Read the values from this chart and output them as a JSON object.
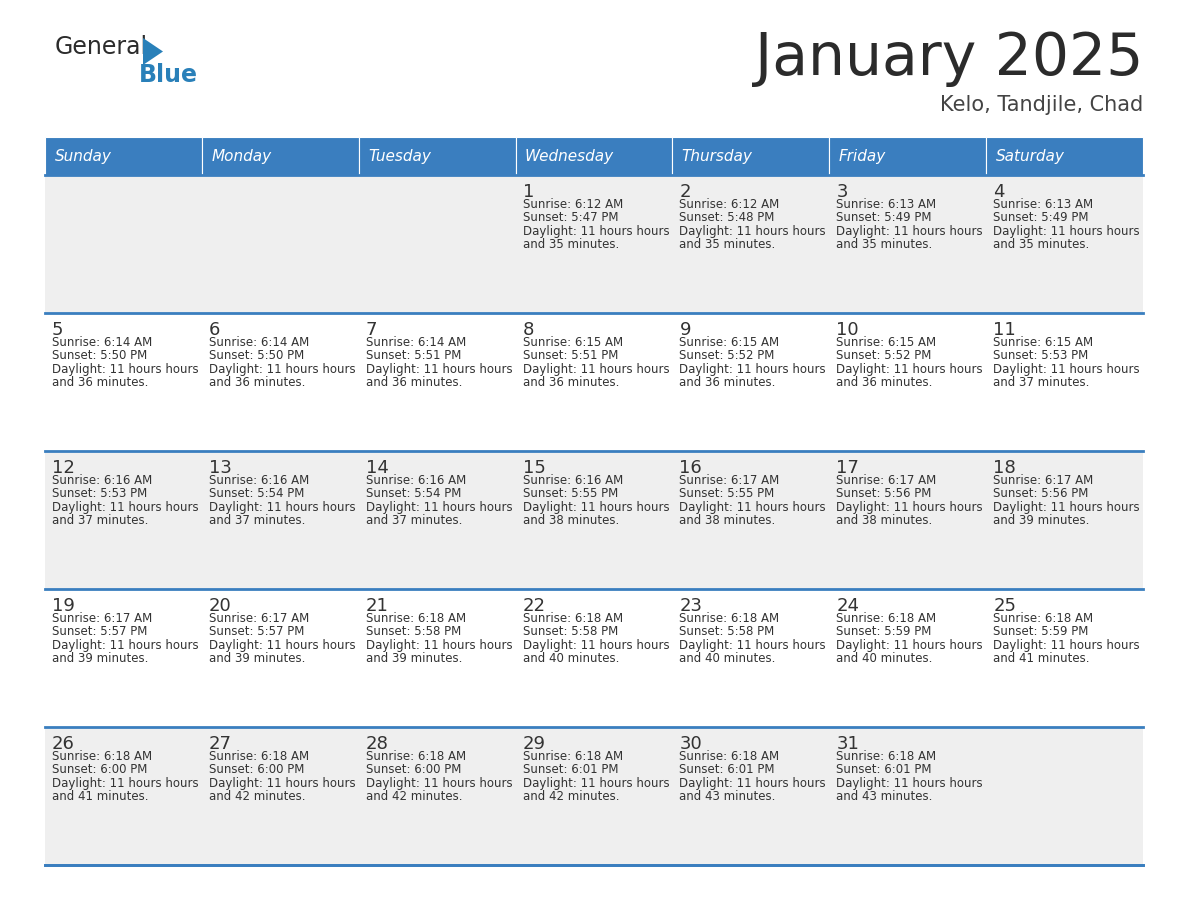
{
  "title": "January 2025",
  "subtitle": "Kelo, Tandjile, Chad",
  "days_of_week": [
    "Sunday",
    "Monday",
    "Tuesday",
    "Wednesday",
    "Thursday",
    "Friday",
    "Saturday"
  ],
  "header_bg": "#3a7ebf",
  "header_text": "#ffffff",
  "cell_bg_gray": "#efefef",
  "cell_bg_white": "#ffffff",
  "separator_color": "#3a7ebf",
  "text_color": "#333333",
  "calendar_data": [
    {
      "day": 1,
      "col": 3,
      "row": 0,
      "sunrise": "6:12 AM",
      "sunset": "5:47 PM",
      "daylight": "11 hours and 35 minutes."
    },
    {
      "day": 2,
      "col": 4,
      "row": 0,
      "sunrise": "6:12 AM",
      "sunset": "5:48 PM",
      "daylight": "11 hours and 35 minutes."
    },
    {
      "day": 3,
      "col": 5,
      "row": 0,
      "sunrise": "6:13 AM",
      "sunset": "5:49 PM",
      "daylight": "11 hours and 35 minutes."
    },
    {
      "day": 4,
      "col": 6,
      "row": 0,
      "sunrise": "6:13 AM",
      "sunset": "5:49 PM",
      "daylight": "11 hours and 35 minutes."
    },
    {
      "day": 5,
      "col": 0,
      "row": 1,
      "sunrise": "6:14 AM",
      "sunset": "5:50 PM",
      "daylight": "11 hours and 36 minutes."
    },
    {
      "day": 6,
      "col": 1,
      "row": 1,
      "sunrise": "6:14 AM",
      "sunset": "5:50 PM",
      "daylight": "11 hours and 36 minutes."
    },
    {
      "day": 7,
      "col": 2,
      "row": 1,
      "sunrise": "6:14 AM",
      "sunset": "5:51 PM",
      "daylight": "11 hours and 36 minutes."
    },
    {
      "day": 8,
      "col": 3,
      "row": 1,
      "sunrise": "6:15 AM",
      "sunset": "5:51 PM",
      "daylight": "11 hours and 36 minutes."
    },
    {
      "day": 9,
      "col": 4,
      "row": 1,
      "sunrise": "6:15 AM",
      "sunset": "5:52 PM",
      "daylight": "11 hours and 36 minutes."
    },
    {
      "day": 10,
      "col": 5,
      "row": 1,
      "sunrise": "6:15 AM",
      "sunset": "5:52 PM",
      "daylight": "11 hours and 36 minutes."
    },
    {
      "day": 11,
      "col": 6,
      "row": 1,
      "sunrise": "6:15 AM",
      "sunset": "5:53 PM",
      "daylight": "11 hours and 37 minutes."
    },
    {
      "day": 12,
      "col": 0,
      "row": 2,
      "sunrise": "6:16 AM",
      "sunset": "5:53 PM",
      "daylight": "11 hours and 37 minutes."
    },
    {
      "day": 13,
      "col": 1,
      "row": 2,
      "sunrise": "6:16 AM",
      "sunset": "5:54 PM",
      "daylight": "11 hours and 37 minutes."
    },
    {
      "day": 14,
      "col": 2,
      "row": 2,
      "sunrise": "6:16 AM",
      "sunset": "5:54 PM",
      "daylight": "11 hours and 37 minutes."
    },
    {
      "day": 15,
      "col": 3,
      "row": 2,
      "sunrise": "6:16 AM",
      "sunset": "5:55 PM",
      "daylight": "11 hours and 38 minutes."
    },
    {
      "day": 16,
      "col": 4,
      "row": 2,
      "sunrise": "6:17 AM",
      "sunset": "5:55 PM",
      "daylight": "11 hours and 38 minutes."
    },
    {
      "day": 17,
      "col": 5,
      "row": 2,
      "sunrise": "6:17 AM",
      "sunset": "5:56 PM",
      "daylight": "11 hours and 38 minutes."
    },
    {
      "day": 18,
      "col": 6,
      "row": 2,
      "sunrise": "6:17 AM",
      "sunset": "5:56 PM",
      "daylight": "11 hours and 39 minutes."
    },
    {
      "day": 19,
      "col": 0,
      "row": 3,
      "sunrise": "6:17 AM",
      "sunset": "5:57 PM",
      "daylight": "11 hours and 39 minutes."
    },
    {
      "day": 20,
      "col": 1,
      "row": 3,
      "sunrise": "6:17 AM",
      "sunset": "5:57 PM",
      "daylight": "11 hours and 39 minutes."
    },
    {
      "day": 21,
      "col": 2,
      "row": 3,
      "sunrise": "6:18 AM",
      "sunset": "5:58 PM",
      "daylight": "11 hours and 39 minutes."
    },
    {
      "day": 22,
      "col": 3,
      "row": 3,
      "sunrise": "6:18 AM",
      "sunset": "5:58 PM",
      "daylight": "11 hours and 40 minutes."
    },
    {
      "day": 23,
      "col": 4,
      "row": 3,
      "sunrise": "6:18 AM",
      "sunset": "5:58 PM",
      "daylight": "11 hours and 40 minutes."
    },
    {
      "day": 24,
      "col": 5,
      "row": 3,
      "sunrise": "6:18 AM",
      "sunset": "5:59 PM",
      "daylight": "11 hours and 40 minutes."
    },
    {
      "day": 25,
      "col": 6,
      "row": 3,
      "sunrise": "6:18 AM",
      "sunset": "5:59 PM",
      "daylight": "11 hours and 41 minutes."
    },
    {
      "day": 26,
      "col": 0,
      "row": 4,
      "sunrise": "6:18 AM",
      "sunset": "6:00 PM",
      "daylight": "11 hours and 41 minutes."
    },
    {
      "day": 27,
      "col": 1,
      "row": 4,
      "sunrise": "6:18 AM",
      "sunset": "6:00 PM",
      "daylight": "11 hours and 42 minutes."
    },
    {
      "day": 28,
      "col": 2,
      "row": 4,
      "sunrise": "6:18 AM",
      "sunset": "6:00 PM",
      "daylight": "11 hours and 42 minutes."
    },
    {
      "day": 29,
      "col": 3,
      "row": 4,
      "sunrise": "6:18 AM",
      "sunset": "6:01 PM",
      "daylight": "11 hours and 42 minutes."
    },
    {
      "day": 30,
      "col": 4,
      "row": 4,
      "sunrise": "6:18 AM",
      "sunset": "6:01 PM",
      "daylight": "11 hours and 43 minutes."
    },
    {
      "day": 31,
      "col": 5,
      "row": 4,
      "sunrise": "6:18 AM",
      "sunset": "6:01 PM",
      "daylight": "11 hours and 43 minutes."
    }
  ],
  "num_rows": 5,
  "num_cols": 7
}
